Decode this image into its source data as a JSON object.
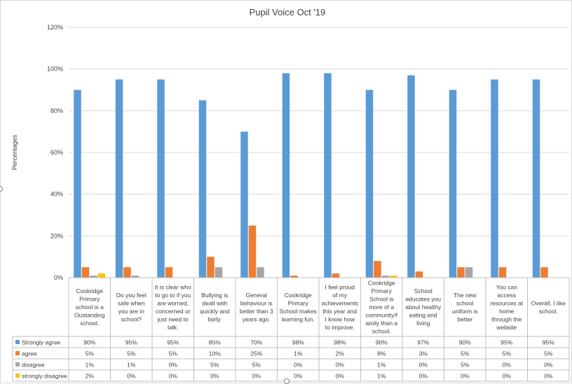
{
  "chart_data": {
    "type": "bar",
    "title": "Pupil Voice  Oct '19",
    "ylabel": "Percentages",
    "xlabel": "",
    "ylim": [
      0,
      1.2
    ],
    "y_ticks": [
      "0%",
      "20%",
      "40%",
      "60%",
      "80%",
      "100%",
      "120%"
    ],
    "grid": true,
    "legend_placement": "data-table-left",
    "categories": [
      "Cookridge Primary school is a Oustanding school.",
      "Do you feel safe when you are in school?",
      "It is clear who to go to if you are worried, concerned or just need to talk.",
      "Bullying is dealt with quickly and fairly.",
      "General behaviour is better than 3 years ago.",
      "Cookridge Primary School makes learning fun.",
      "I feel proud of my achievements this year and I know how to improve.",
      "Cookridge Primary School is more of a community/family than a school.",
      "School educates you about healthy eating and living",
      "The new school uniform is better",
      "You can access resources at home through the website",
      "Overall, I like school."
    ],
    "series": [
      {
        "name": "Strongly agree",
        "color": "#5b9bd5",
        "values": [
          0.9,
          0.95,
          0.95,
          0.85,
          0.7,
          0.98,
          0.98,
          0.9,
          0.97,
          0.9,
          0.95,
          0.95
        ],
        "labels": [
          "90%",
          "95%",
          "95%",
          "85%",
          "70%",
          "98%",
          "98%",
          "90%",
          "97%",
          "90%",
          "95%",
          "95%"
        ]
      },
      {
        "name": "agree",
        "color": "#ed7d31",
        "values": [
          0.05,
          0.05,
          0.05,
          0.1,
          0.25,
          0.01,
          0.02,
          0.08,
          0.03,
          0.05,
          0.05,
          0.05
        ],
        "labels": [
          "5%",
          "5%",
          "5%",
          "10%",
          "25%",
          "1%",
          "2%",
          "8%",
          "3%",
          "5%",
          "5%",
          "5%"
        ]
      },
      {
        "name": "disagree",
        "color": "#a5a5a5",
        "values": [
          0.01,
          0.01,
          0,
          0.05,
          0.05,
          0,
          0,
          0.01,
          0,
          0.05,
          0,
          0
        ],
        "labels": [
          "1%",
          "1%",
          "0%",
          "5%",
          "5%",
          "0%",
          "0%",
          "1%",
          "0%",
          "5%",
          "0%",
          "0%"
        ]
      },
      {
        "name": "strongly disagree",
        "color": "#ffc000",
        "values": [
          0.02,
          0,
          0,
          0,
          0,
          0,
          0,
          0.01,
          0,
          0,
          0,
          0
        ],
        "labels": [
          "2%",
          "0%",
          "0%",
          "0%",
          "0%",
          "0%",
          "0%",
          "1%",
          "0%",
          "0%",
          "0%",
          "0%"
        ]
      }
    ]
  },
  "category_lines": [
    [
      "Cookridge",
      "Primary",
      "school is a",
      "Oustanding",
      "school."
    ],
    [
      "Do you feel",
      "safe when",
      "you are in",
      "school?"
    ],
    [
      "It is clear who",
      "to go to if you",
      "are worried,",
      "concerned or",
      "just need to",
      "talk."
    ],
    [
      "Bullying is",
      "dealt with",
      "quickly and",
      "fairly."
    ],
    [
      "General",
      "behaviour is",
      "better than 3",
      "years ago."
    ],
    [
      "Cookridge",
      "Primary",
      "School makes",
      "learning fun."
    ],
    [
      "I feel proud",
      "of my",
      "achievements",
      "this year and",
      "I know how",
      "to improve."
    ],
    [
      "Cookridge",
      "Primary",
      "School is",
      "more of a",
      "community/f",
      "amily than a",
      "school."
    ],
    [
      "School",
      "educates you",
      "about healthy",
      "eating and",
      "living"
    ],
    [
      "The new",
      "school",
      "uniform is",
      "better"
    ],
    [
      "You can",
      "access",
      "resources at",
      "home",
      "through the",
      "website"
    ],
    [
      "Overall, I like",
      "school."
    ]
  ]
}
